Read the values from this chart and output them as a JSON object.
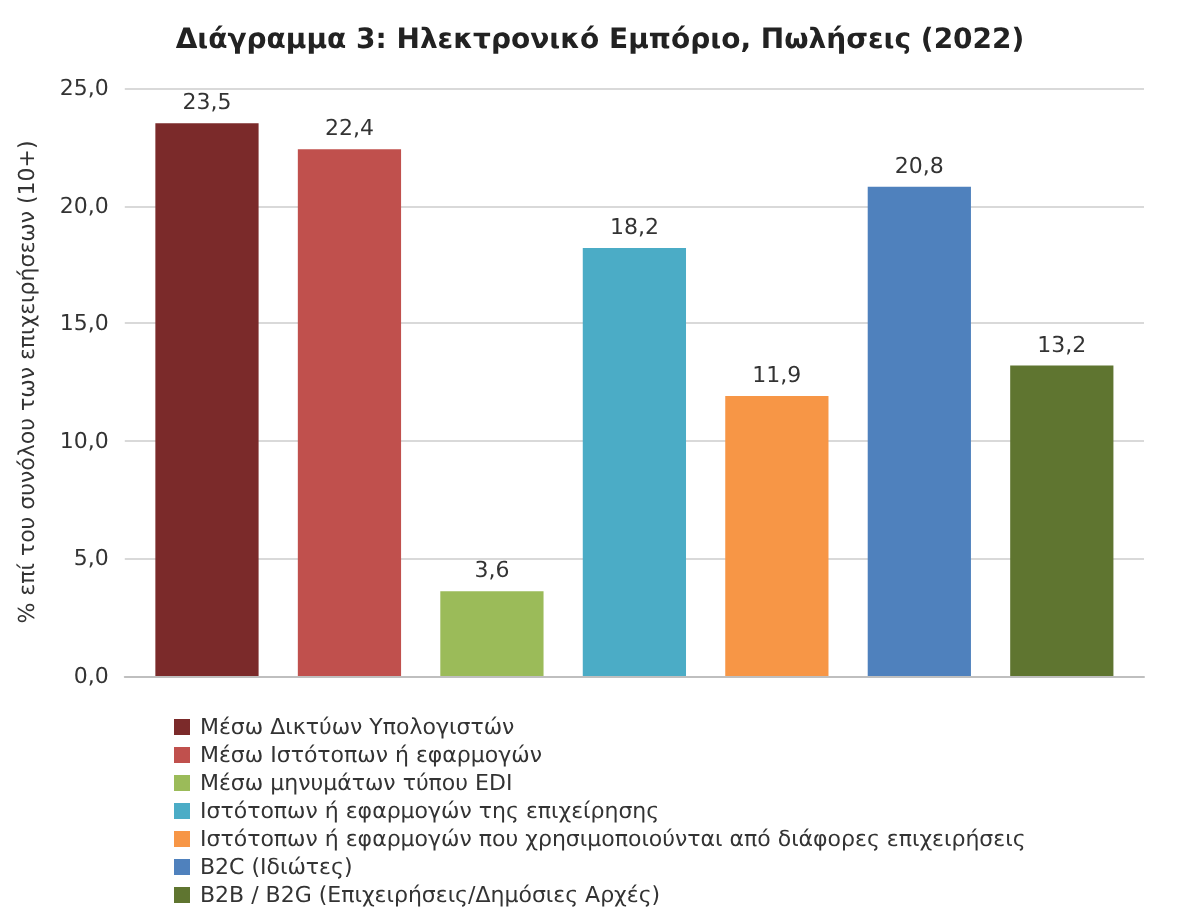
{
  "chart_data": {
    "type": "bar",
    "title": "Διάγραμμα 3: Ηλεκτρονικό Εμπόριο, Πωλήσεις (2022)",
    "ylabel": "% επί του συνόλου των επιχειρήσεων (10+)",
    "categories": [
      null
    ],
    "series": [
      {
        "name": "Μέσω Δικτύων Υπολογιστών",
        "color": "#7b2a2a",
        "values": [
          23.5
        ],
        "value_labels": [
          "23,5"
        ]
      },
      {
        "name": "Μέσω Ιστότοπων ή εφαρμογών",
        "color": "#c0504d",
        "values": [
          22.4
        ],
        "value_labels": [
          "22,4"
        ]
      },
      {
        "name": "Μέσω μηνυμάτων τύπου EDI",
        "color": "#9bbb59",
        "values": [
          3.6
        ],
        "value_labels": [
          "3,6"
        ]
      },
      {
        "name": "Ιστότοπων ή εφαρμογών της επιχείρησης",
        "color": "#4bacc6",
        "values": [
          18.2
        ],
        "value_labels": [
          "18,2"
        ]
      },
      {
        "name": "Ιστότοπων ή εφαρμογών που χρησιμοποιούνται από διάφορες επιχειρήσεις",
        "color": "#f79646",
        "values": [
          11.9
        ],
        "value_labels": [
          "11,9"
        ]
      },
      {
        "name": "B2C (Ιδιώτες)",
        "color": "#4f81bd",
        "values": [
          20.8
        ],
        "value_labels": [
          "20,8"
        ]
      },
      {
        "name": "B2B / B2G (Επιχειρήσεις/Δημόσιες Αρχές)",
        "color": "#5f7530",
        "values": [
          13.2
        ],
        "value_labels": [
          "13,2"
        ]
      }
    ],
    "ylim": [
      0,
      25
    ],
    "yticks": [
      {
        "value": 0,
        "label": "0,0"
      },
      {
        "value": 5,
        "label": "5,0"
      },
      {
        "value": 10,
        "label": "10,0"
      },
      {
        "value": 15,
        "label": "15,0"
      },
      {
        "value": 20,
        "label": "20,0"
      },
      {
        "value": 25,
        "label": "25,0"
      }
    ],
    "grid": "y",
    "legend": "bottom"
  }
}
